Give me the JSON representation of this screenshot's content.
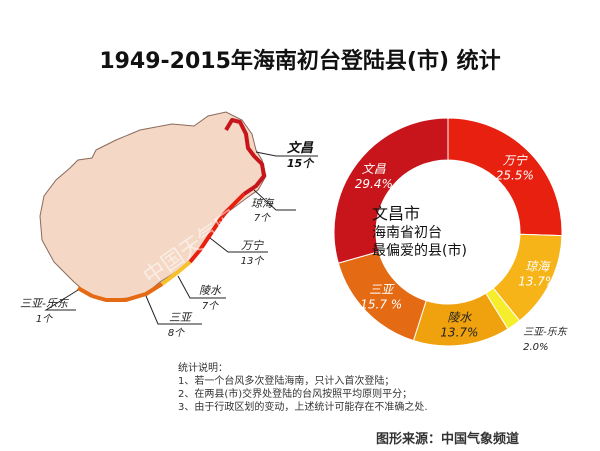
{
  "title": "1949-2015年海南初台登陆县(市) 统计",
  "map": {
    "watermark": "中国天气网",
    "labels": [
      {
        "name": "文昌",
        "count": "15个"
      },
      {
        "name": "琼海",
        "count": "7个"
      },
      {
        "name": "万宁",
        "count": "13个"
      },
      {
        "name": "陵水",
        "count": "7个"
      },
      {
        "name": "三亚",
        "count": "8个"
      },
      {
        "name": "三亚-乐东",
        "count": "1个"
      }
    ]
  },
  "chart_data": {
    "type": "pie",
    "subtype": "donut",
    "slices": [
      {
        "label": "万宁",
        "value": 25.5,
        "value_label": "25.5%",
        "color": "#e8200f"
      },
      {
        "label": "琼海",
        "value": 13.7,
        "value_label": "13.7%",
        "color": "#f7b418"
      },
      {
        "label": "三亚-乐东",
        "value": 2.0,
        "value_label": "2.0%",
        "color": "#f6ee2c"
      },
      {
        "label": "陵水",
        "value": 13.7,
        "value_label": "13.7%",
        "color": "#f0a20e"
      },
      {
        "label": "三亚",
        "value": 15.7,
        "value_label": "15.7 %",
        "color": "#e56a14"
      },
      {
        "label": "文昌",
        "value": 29.4,
        "value_label": "29.4%",
        "color": "#c8151b"
      }
    ],
    "center_text": [
      "文昌市",
      "海南省初台",
      "最偏爱的县(市)"
    ]
  },
  "notes": {
    "heading": "统计说明：",
    "items": [
      "1、若一个台风多次登陆海南，只计入首次登陆；",
      "2、在两县(市)交界处登陆的台风按照平均原则平分；",
      "3、由于行政区划的变动，上述统计可能存在不准确之处."
    ]
  },
  "source": "图形来源：中国气象频道",
  "colors": {
    "island": "#f4d7c4",
    "island_stroke": "#8a6a5c"
  }
}
